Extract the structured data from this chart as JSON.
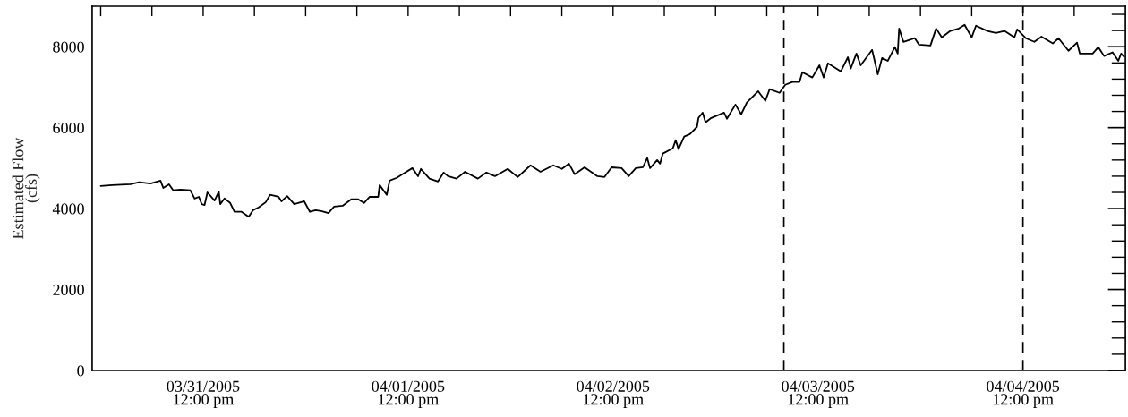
{
  "chart_data": {
    "type": "line",
    "ylabel": "Estimated Flow\n(cfs)",
    "xlim": [
      "2005-03-30T23:00",
      "2005-04-05T00:00"
    ],
    "ylim": [
      0,
      9000
    ],
    "xticks": [
      {
        "value": "2005-03-31T00:00",
        "label": null
      },
      {
        "value": "2005-03-31T06:00",
        "label": null
      },
      {
        "value": "2005-03-31T12:00",
        "label": "03/31/2005\n12:00 pm"
      },
      {
        "value": "2005-03-31T18:00",
        "label": null
      },
      {
        "value": "2005-04-01T00:00",
        "label": null
      },
      {
        "value": "2005-04-01T06:00",
        "label": null
      },
      {
        "value": "2005-04-01T12:00",
        "label": "04/01/2005\n12:00 pm"
      },
      {
        "value": "2005-04-01T18:00",
        "label": null
      },
      {
        "value": "2005-04-02T00:00",
        "label": null
      },
      {
        "value": "2005-04-02T06:00",
        "label": null
      },
      {
        "value": "2005-04-02T12:00",
        "label": "04/02/2005\n12:00 pm"
      },
      {
        "value": "2005-04-02T18:00",
        "label": null
      },
      {
        "value": "2005-04-03T00:00",
        "label": null
      },
      {
        "value": "2005-04-03T06:00",
        "label": null
      },
      {
        "value": "2005-04-03T12:00",
        "label": "04/03/2005\n12:00 pm"
      },
      {
        "value": "2005-04-03T18:00",
        "label": null
      },
      {
        "value": "2005-04-04T00:00",
        "label": null
      },
      {
        "value": "2005-04-04T06:00",
        "label": null
      },
      {
        "value": "2005-04-04T12:00",
        "label": "04/04/2005\n12:00 pm"
      },
      {
        "value": "2005-04-04T18:00",
        "label": null
      }
    ],
    "yticks": [
      0,
      {
        "value": 400,
        "label": null
      },
      {
        "value": 800,
        "label": null
      },
      {
        "value": 1200,
        "label": null
      },
      {
        "value": 1600,
        "label": null
      },
      2000,
      {
        "value": 2400,
        "label": null
      },
      {
        "value": 2800,
        "label": null
      },
      {
        "value": 3200,
        "label": null
      },
      {
        "value": 3600,
        "label": null
      },
      4000,
      {
        "value": 4400,
        "label": null
      },
      {
        "value": 4800,
        "label": null
      },
      {
        "value": 5200,
        "label": null
      },
      {
        "value": 5600,
        "label": null
      },
      6000,
      {
        "value": 6400,
        "label": null
      },
      {
        "value": 6800,
        "label": null
      },
      {
        "value": 7200,
        "label": null
      },
      {
        "value": 7600,
        "label": null
      },
      8000,
      {
        "value": 8400,
        "label": null
      },
      {
        "value": 8800,
        "label": null
      }
    ],
    "grid": false,
    "legend": false,
    "ref_lines": [
      {
        "axis": "x",
        "value": "2005-04-03T08:00",
        "color": "#000000",
        "line_style": "dashed"
      },
      {
        "axis": "x",
        "value": "2005-04-04T12:00",
        "color": "#000000",
        "line_style": "dashed"
      }
    ],
    "series": [
      {
        "color": "#000000",
        "x": [
          "2005-03-31T00:00",
          "2005-03-31T01:20",
          "2005-03-31T03:30",
          "2005-03-31T04:30",
          "2005-03-31T05:50",
          "2005-03-31T07:00",
          "2005-03-31T07:20",
          "2005-03-31T08:00",
          "2005-03-31T08:30",
          "2005-03-31T09:20",
          "2005-03-31T10:30",
          "2005-03-31T11:00",
          "2005-03-31T11:30",
          "2005-03-31T11:50",
          "2005-03-31T12:10",
          "2005-03-31T12:30",
          "2005-03-31T13:20",
          "2005-03-31T13:50",
          "2005-03-31T14:00",
          "2005-03-31T14:30",
          "2005-03-31T15:10",
          "2005-03-31T15:40",
          "2005-03-31T16:30",
          "2005-03-31T17:20",
          "2005-03-31T17:50",
          "2005-03-31T18:30",
          "2005-03-31T19:20",
          "2005-03-31T19:50",
          "2005-03-31T20:50",
          "2005-03-31T21:10",
          "2005-03-31T21:50",
          "2005-03-31T22:40",
          "2005-03-31T23:50",
          "2005-04-01T00:30",
          "2005-04-01T01:10",
          "2005-04-01T01:50",
          "2005-04-01T02:40",
          "2005-04-01T03:20",
          "2005-04-01T04:20",
          "2005-04-01T05:20",
          "2005-04-01T06:10",
          "2005-04-01T06:50",
          "2005-04-01T07:30",
          "2005-04-01T08:30",
          "2005-04-01T08:40",
          "2005-04-01T09:30",
          "2005-04-01T09:50",
          "2005-04-01T10:40",
          "2005-04-01T11:20",
          "2005-04-01T12:30",
          "2005-04-01T13:10",
          "2005-04-01T13:30",
          "2005-04-01T14:30",
          "2005-04-01T15:30",
          "2005-04-01T16:10",
          "2005-04-01T16:40",
          "2005-04-01T17:40",
          "2005-04-01T18:40",
          "2005-04-01T20:10",
          "2005-04-01T21:10",
          "2005-04-01T22:10",
          "2005-04-01T23:40",
          "2005-04-02T00:50",
          "2005-04-02T02:20",
          "2005-04-02T03:30",
          "2005-04-02T05:00",
          "2005-04-02T06:00",
          "2005-04-02T06:50",
          "2005-04-02T07:30",
          "2005-04-02T08:40",
          "2005-04-02T10:10",
          "2005-04-02T11:00",
          "2005-04-02T11:50",
          "2005-04-02T13:00",
          "2005-04-02T13:50",
          "2005-04-02T14:40",
          "2005-04-02T15:30",
          "2005-04-02T16:00",
          "2005-04-02T16:20",
          "2005-04-02T17:10",
          "2005-04-02T17:30",
          "2005-04-02T17:50",
          "2005-04-02T19:00",
          "2005-04-02T19:20",
          "2005-04-02T19:40",
          "2005-04-02T20:20",
          "2005-04-02T21:00",
          "2005-04-02T21:50",
          "2005-04-02T22:00",
          "2005-04-02T22:30",
          "2005-04-02T22:50",
          "2005-04-02T23:30",
          "2005-04-03T01:00",
          "2005-04-03T01:20",
          "2005-04-03T02:20",
          "2005-04-03T03:00",
          "2005-04-03T03:40",
          "2005-04-03T05:00",
          "2005-04-03T05:50",
          "2005-04-03T06:20",
          "2005-04-03T07:30",
          "2005-04-03T08:10",
          "2005-04-03T09:00",
          "2005-04-03T09:50",
          "2005-04-03T10:10",
          "2005-04-03T11:20",
          "2005-04-03T12:10",
          "2005-04-03T12:40",
          "2005-04-03T13:10",
          "2005-04-03T14:40",
          "2005-04-03T15:30",
          "2005-04-03T15:50",
          "2005-04-03T16:30",
          "2005-04-03T17:00",
          "2005-04-03T18:20",
          "2005-04-03T19:00",
          "2005-04-03T19:30",
          "2005-04-03T20:10",
          "2005-04-03T21:00",
          "2005-04-03T21:20",
          "2005-04-03T21:30",
          "2005-04-03T22:00",
          "2005-04-03T23:20",
          "2005-04-03T23:50",
          "2005-04-04T01:10",
          "2005-04-04T01:50",
          "2005-04-04T02:30",
          "2005-04-04T03:30",
          "2005-04-04T04:30",
          "2005-04-04T05:10",
          "2005-04-04T06:00",
          "2005-04-04T06:30",
          "2005-04-04T07:50",
          "2005-04-04T08:50",
          "2005-04-04T09:50",
          "2005-04-04T11:00",
          "2005-04-04T11:20",
          "2005-04-04T12:20",
          "2005-04-04T13:20",
          "2005-04-04T14:10",
          "2005-04-04T15:30",
          "2005-04-04T16:10",
          "2005-04-04T17:20",
          "2005-04-04T18:20",
          "2005-04-04T18:40",
          "2005-04-04T20:10",
          "2005-04-04T20:50",
          "2005-04-04T21:30",
          "2005-04-04T22:30",
          "2005-04-04T23:10",
          "2005-04-04T23:30",
          "2005-04-04T23:50"
        ],
        "values": [
          4560,
          4580,
          4600,
          4650,
          4620,
          4690,
          4510,
          4600,
          4450,
          4470,
          4450,
          4250,
          4290,
          4110,
          4090,
          4400,
          4200,
          4420,
          4110,
          4250,
          4140,
          3920,
          3920,
          3800,
          3960,
          4030,
          4160,
          4340,
          4290,
          4180,
          4310,
          4110,
          4180,
          3920,
          3960,
          3940,
          3890,
          4050,
          4070,
          4230,
          4230,
          4140,
          4290,
          4290,
          4580,
          4340,
          4690,
          4760,
          4850,
          5000,
          4800,
          4980,
          4740,
          4670,
          4890,
          4800,
          4740,
          4910,
          4740,
          4890,
          4800,
          4980,
          4780,
          5070,
          4910,
          5070,
          4980,
          5110,
          4850,
          5020,
          4800,
          4780,
          5020,
          5000,
          4800,
          5000,
          5020,
          5250,
          5000,
          5200,
          5110,
          5360,
          5490,
          5690,
          5470,
          5780,
          5840,
          6020,
          6240,
          6370,
          6130,
          6240,
          6370,
          6220,
          6570,
          6330,
          6620,
          6900,
          6660,
          6950,
          6860,
          7060,
          7130,
          7130,
          7370,
          7240,
          7540,
          7240,
          7590,
          7390,
          7740,
          7460,
          7830,
          7540,
          7920,
          7320,
          7720,
          7650,
          7990,
          7830,
          8450,
          8120,
          8210,
          8050,
          8030,
          8450,
          8230,
          8390,
          8450,
          8540,
          8230,
          8520,
          8390,
          8340,
          8390,
          8230,
          8430,
          8210,
          8120,
          8250,
          8080,
          8210,
          7900,
          8100,
          7830,
          7830,
          7990,
          7770,
          7860,
          7650,
          7830,
          7750
        ]
      }
    ]
  }
}
